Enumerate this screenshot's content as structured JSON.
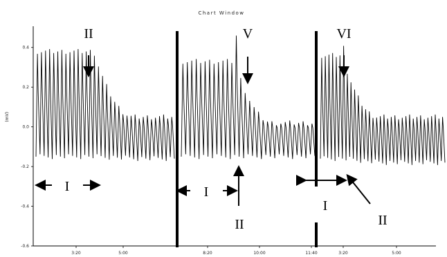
{
  "window_title": "Chart Window",
  "chart_data": {
    "type": "line",
    "title": "Chart Window",
    "xlabel": "",
    "ylabel": "(mV)",
    "ylim": [
      -0.6,
      0.5
    ],
    "yticks": [
      0.4,
      0.2,
      0.0,
      -0.2,
      -0.4,
      -0.6
    ],
    "ytick_labels": [
      "0.4",
      "0.2",
      "0.0",
      "-0.2",
      "-0.4",
      "-0.6"
    ],
    "panels": [
      {
        "xticks": [
          {
            "label": "3:20"
          },
          {
            "label": "5:00"
          }
        ],
        "segments": [
          {
            "cycles": 34,
            "upper": 0.38,
            "upper_end": 0.05,
            "lower": -0.15,
            "lower_end": -0.16,
            "hold_fraction": 0.42,
            "peak": null
          }
        ]
      },
      {
        "xticks": [
          {
            "label": "8:20"
          },
          {
            "label": "10:00"
          },
          {
            "label": "11:40"
          }
        ],
        "segments": [
          {
            "cycles": 30,
            "upper": 0.33,
            "upper_end": 0.02,
            "lower": -0.15,
            "lower_end": -0.15,
            "hold_fraction": 0.4,
            "peak": 0.46
          }
        ]
      },
      {
        "xticks": [
          {
            "label": "3:20"
          },
          {
            "label": "5:00"
          }
        ],
        "segments": [
          {
            "cycles": 34,
            "upper": 0.36,
            "upper_end": 0.05,
            "lower": -0.16,
            "lower_end": -0.18,
            "hold_fraction": 0.17,
            "peak": 0.4
          }
        ]
      }
    ],
    "annotations": [
      {
        "text": "II",
        "kind": "down-arrow",
        "panel": 0
      },
      {
        "text": "V",
        "kind": "down-arrow",
        "panel": 1
      },
      {
        "text": "VI",
        "kind": "down-arrow",
        "panel": 2
      },
      {
        "text": "I",
        "kind": "double-arrow",
        "panel": 0
      },
      {
        "text": "I",
        "kind": "double-arrow",
        "panel": 1
      },
      {
        "text": "I",
        "kind": "double-arrow",
        "panel": 2
      },
      {
        "text": "II",
        "kind": "up-arrow",
        "panel": 1
      },
      {
        "text": "II",
        "kind": "diagonal-arrow",
        "panel": 2
      }
    ]
  }
}
